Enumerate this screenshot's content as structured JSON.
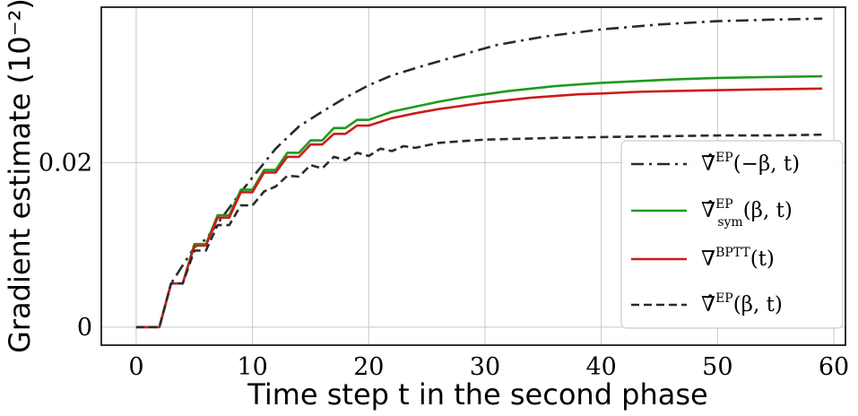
{
  "chart_data": {
    "type": "line",
    "xlabel": "Time step t in the second phase",
    "ylabel": "Gradient estimate (10⁻²)",
    "xlim": [
      -3,
      61
    ],
    "ylim": [
      -0.0022,
      0.0389
    ],
    "xticks": [
      0,
      10,
      20,
      30,
      40,
      50,
      60
    ],
    "xtick_labels": [
      "0",
      "10",
      "20",
      "30",
      "40",
      "50",
      "60"
    ],
    "yticks": [
      0,
      0.02
    ],
    "ytick_labels": [
      "0",
      "0.02"
    ],
    "grid": true,
    "legend_position": "right",
    "series": [
      {
        "name": "∇̂^EP(−β, t)",
        "legend_main": "∇̂",
        "legend_sup": "EP",
        "legend_sub": "",
        "legend_args": "(−β, t)",
        "color": "#2b2b2b",
        "dash": "14 6 3 6",
        "x": [
          0,
          2,
          3,
          5,
          6,
          8,
          9,
          10,
          12,
          14,
          16,
          18,
          20,
          22,
          25,
          28,
          31,
          35,
          40,
          45,
          50,
          55,
          59
        ],
        "values": [
          0,
          0,
          0.0053,
          0.0097,
          0.0107,
          0.0145,
          0.0164,
          0.0182,
          0.0217,
          0.0244,
          0.0262,
          0.0279,
          0.0294,
          0.0306,
          0.0319,
          0.0331,
          0.0343,
          0.0353,
          0.0362,
          0.0368,
          0.0372,
          0.0374,
          0.0375
        ]
      },
      {
        "name": "∇̂^EP_sym(β, t)",
        "legend_main": "∇̂",
        "legend_sup": "EP",
        "legend_sub": "sym",
        "legend_args": "(β, t)",
        "color": "#1e9a1e",
        "dash": "",
        "x": [
          0,
          2,
          3,
          4,
          5,
          6,
          7,
          8,
          9,
          10,
          11,
          12,
          13,
          14,
          15,
          16,
          17,
          18,
          19,
          20,
          22,
          24,
          26,
          28,
          30,
          32,
          34,
          36,
          38,
          40,
          43,
          46,
          50,
          54,
          59
        ],
        "values": [
          0,
          0,
          0.0053,
          0.0053,
          0.0101,
          0.0101,
          0.0136,
          0.0136,
          0.0167,
          0.0167,
          0.0191,
          0.0191,
          0.0212,
          0.0212,
          0.0227,
          0.0227,
          0.0242,
          0.0242,
          0.0252,
          0.0252,
          0.0262,
          0.0268,
          0.0274,
          0.0279,
          0.0283,
          0.0287,
          0.029,
          0.0293,
          0.0295,
          0.0297,
          0.0299,
          0.0301,
          0.0303,
          0.0304,
          0.0305
        ]
      },
      {
        "name": "∇^BPTT(t)",
        "legend_main": "∇",
        "legend_sup": "BPTT",
        "legend_sub": "",
        "legend_args": "(t)",
        "color": "#d01a1a",
        "dash": "",
        "x": [
          0,
          2,
          3,
          4,
          5,
          6,
          7,
          8,
          9,
          10,
          11,
          12,
          13,
          14,
          15,
          16,
          17,
          18,
          19,
          20,
          22,
          24,
          26,
          28,
          30,
          32,
          34,
          36,
          38,
          40,
          43,
          46,
          50,
          54,
          59
        ],
        "values": [
          0,
          0,
          0.0053,
          0.0053,
          0.0099,
          0.0099,
          0.0133,
          0.0133,
          0.0164,
          0.0164,
          0.0188,
          0.0188,
          0.0207,
          0.0207,
          0.0222,
          0.0222,
          0.0235,
          0.0235,
          0.0245,
          0.0245,
          0.0254,
          0.026,
          0.0265,
          0.0269,
          0.0273,
          0.0276,
          0.0279,
          0.0281,
          0.0283,
          0.0284,
          0.0286,
          0.0287,
          0.0288,
          0.0289,
          0.029
        ]
      },
      {
        "name": "∇̂^EP(β, t)",
        "legend_main": "∇̂",
        "legend_sup": "EP",
        "legend_sub": "",
        "legend_args": "(β, t)",
        "color": "#2b2b2b",
        "dash": "9 5",
        "x": [
          0,
          2,
          3,
          4,
          5,
          6,
          7,
          8,
          9,
          10,
          11,
          12,
          13,
          14,
          15,
          16,
          17,
          18,
          19,
          20,
          21,
          22,
          23,
          24,
          26,
          28,
          30,
          33,
          36,
          40,
          45,
          50,
          55,
          59
        ],
        "values": [
          0,
          0,
          0.0053,
          0.0053,
          0.0093,
          0.0093,
          0.0124,
          0.0124,
          0.0148,
          0.0148,
          0.0165,
          0.0171,
          0.0184,
          0.0183,
          0.0197,
          0.0193,
          0.0207,
          0.0203,
          0.0212,
          0.0208,
          0.0217,
          0.0214,
          0.022,
          0.0218,
          0.0224,
          0.0226,
          0.0228,
          0.0229,
          0.023,
          0.0231,
          0.0232,
          0.0233,
          0.0233,
          0.0234
        ]
      }
    ]
  }
}
